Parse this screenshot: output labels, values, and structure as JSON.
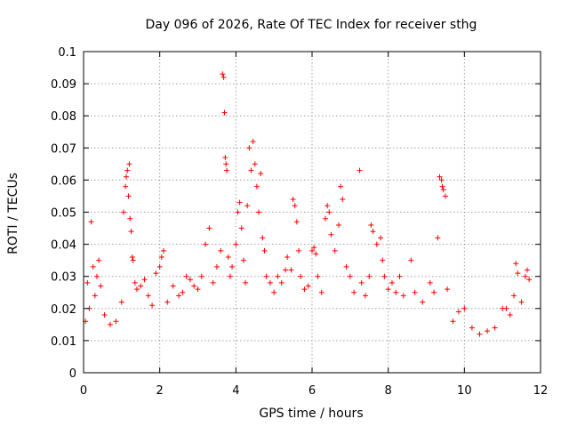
{
  "chart_data": {
    "type": "scatter",
    "title": "Day 096 of 2026, Rate Of TEC Index for receiver sthg",
    "xlabel": "GPS time / hours",
    "ylabel": "ROTI / TECUs",
    "xlim": [
      0,
      12
    ],
    "ylim": [
      0,
      0.1
    ],
    "xticks": [
      "0",
      "2",
      "4",
      "6",
      "8",
      "10",
      "12"
    ],
    "yticks": [
      "0",
      "0.01",
      "0.02",
      "0.03",
      "0.04",
      "0.05",
      "0.06",
      "0.07",
      "0.08",
      "0.09",
      "0.1"
    ],
    "grid": true,
    "marker": "+",
    "color": "#ff0000",
    "series": [
      {
        "name": "ROTI",
        "points": [
          [
            0.05,
            0.016
          ],
          [
            0.1,
            0.028
          ],
          [
            0.15,
            0.02
          ],
          [
            0.2,
            0.047
          ],
          [
            0.25,
            0.033
          ],
          [
            0.3,
            0.024
          ],
          [
            0.35,
            0.03
          ],
          [
            0.4,
            0.035
          ],
          [
            0.45,
            0.027
          ],
          [
            0.55,
            0.018
          ],
          [
            0.7,
            0.015
          ],
          [
            0.85,
            0.016
          ],
          [
            1.0,
            0.022
          ],
          [
            1.05,
            0.05
          ],
          [
            1.1,
            0.058
          ],
          [
            1.12,
            0.061
          ],
          [
            1.15,
            0.063
          ],
          [
            1.18,
            0.055
          ],
          [
            1.2,
            0.065
          ],
          [
            1.22,
            0.048
          ],
          [
            1.25,
            0.044
          ],
          [
            1.28,
            0.036
          ],
          [
            1.3,
            0.035
          ],
          [
            1.35,
            0.028
          ],
          [
            1.4,
            0.026
          ],
          [
            1.5,
            0.027
          ],
          [
            1.6,
            0.029
          ],
          [
            1.7,
            0.024
          ],
          [
            1.8,
            0.021
          ],
          [
            1.9,
            0.031
          ],
          [
            2.0,
            0.033
          ],
          [
            2.05,
            0.036
          ],
          [
            2.1,
            0.038
          ],
          [
            2.2,
            0.022
          ],
          [
            2.35,
            0.027
          ],
          [
            2.5,
            0.024
          ],
          [
            2.6,
            0.025
          ],
          [
            2.7,
            0.03
          ],
          [
            2.8,
            0.029
          ],
          [
            2.9,
            0.027
          ],
          [
            3.0,
            0.026
          ],
          [
            3.1,
            0.03
          ],
          [
            3.2,
            0.04
          ],
          [
            3.3,
            0.045
          ],
          [
            3.4,
            0.028
          ],
          [
            3.5,
            0.033
          ],
          [
            3.6,
            0.038
          ],
          [
            3.65,
            0.093
          ],
          [
            3.68,
            0.092
          ],
          [
            3.7,
            0.081
          ],
          [
            3.72,
            0.067
          ],
          [
            3.74,
            0.065
          ],
          [
            3.76,
            0.063
          ],
          [
            3.8,
            0.036
          ],
          [
            3.85,
            0.03
          ],
          [
            3.9,
            0.033
          ],
          [
            4.0,
            0.04
          ],
          [
            4.05,
            0.05
          ],
          [
            4.1,
            0.053
          ],
          [
            4.15,
            0.045
          ],
          [
            4.2,
            0.035
          ],
          [
            4.25,
            0.028
          ],
          [
            4.3,
            0.052
          ],
          [
            4.35,
            0.07
          ],
          [
            4.4,
            0.063
          ],
          [
            4.45,
            0.072
          ],
          [
            4.5,
            0.065
          ],
          [
            4.55,
            0.058
          ],
          [
            4.6,
            0.05
          ],
          [
            4.65,
            0.062
          ],
          [
            4.7,
            0.042
          ],
          [
            4.75,
            0.038
          ],
          [
            4.8,
            0.03
          ],
          [
            4.9,
            0.028
          ],
          [
            5.0,
            0.025
          ],
          [
            5.1,
            0.03
          ],
          [
            5.2,
            0.028
          ],
          [
            5.3,
            0.032
          ],
          [
            5.35,
            0.036
          ],
          [
            5.45,
            0.032
          ],
          [
            5.5,
            0.054
          ],
          [
            5.55,
            0.052
          ],
          [
            5.6,
            0.047
          ],
          [
            5.65,
            0.038
          ],
          [
            5.7,
            0.03
          ],
          [
            5.8,
            0.026
          ],
          [
            5.9,
            0.027
          ],
          [
            6.0,
            0.038
          ],
          [
            6.05,
            0.039
          ],
          [
            6.1,
            0.037
          ],
          [
            6.15,
            0.03
          ],
          [
            6.25,
            0.025
          ],
          [
            6.35,
            0.048
          ],
          [
            6.4,
            0.052
          ],
          [
            6.45,
            0.05
          ],
          [
            6.5,
            0.043
          ],
          [
            6.6,
            0.038
          ],
          [
            6.7,
            0.046
          ],
          [
            6.75,
            0.058
          ],
          [
            6.8,
            0.054
          ],
          [
            6.9,
            0.033
          ],
          [
            7.0,
            0.03
          ],
          [
            7.1,
            0.025
          ],
          [
            7.25,
            0.063
          ],
          [
            7.3,
            0.028
          ],
          [
            7.4,
            0.024
          ],
          [
            7.5,
            0.03
          ],
          [
            7.55,
            0.046
          ],
          [
            7.6,
            0.044
          ],
          [
            7.7,
            0.04
          ],
          [
            7.8,
            0.042
          ],
          [
            7.85,
            0.035
          ],
          [
            7.9,
            0.03
          ],
          [
            8.0,
            0.026
          ],
          [
            8.1,
            0.028
          ],
          [
            8.2,
            0.025
          ],
          [
            8.3,
            0.03
          ],
          [
            8.4,
            0.024
          ],
          [
            8.6,
            0.035
          ],
          [
            8.7,
            0.025
          ],
          [
            8.9,
            0.022
          ],
          [
            9.1,
            0.028
          ],
          [
            9.2,
            0.025
          ],
          [
            9.3,
            0.042
          ],
          [
            9.35,
            0.061
          ],
          [
            9.4,
            0.06
          ],
          [
            9.42,
            0.058
          ],
          [
            9.45,
            0.057
          ],
          [
            9.5,
            0.055
          ],
          [
            9.55,
            0.026
          ],
          [
            9.7,
            0.016
          ],
          [
            9.85,
            0.019
          ],
          [
            10.0,
            0.02
          ],
          [
            10.2,
            0.014
          ],
          [
            10.4,
            0.012
          ],
          [
            10.6,
            0.013
          ],
          [
            10.8,
            0.014
          ],
          [
            11.0,
            0.02
          ],
          [
            11.1,
            0.02
          ],
          [
            11.2,
            0.018
          ],
          [
            11.3,
            0.024
          ],
          [
            11.35,
            0.034
          ],
          [
            11.4,
            0.031
          ],
          [
            11.5,
            0.022
          ],
          [
            11.6,
            0.03
          ],
          [
            11.65,
            0.032
          ],
          [
            11.7,
            0.029
          ]
        ]
      }
    ]
  }
}
